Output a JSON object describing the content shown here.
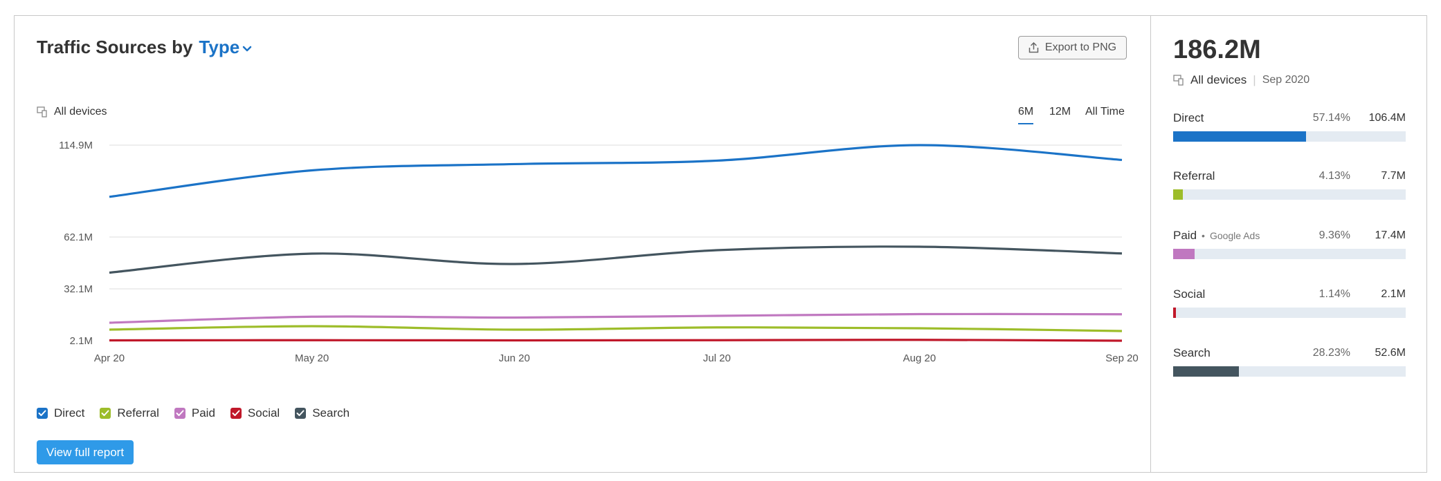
{
  "header": {
    "title": "Traffic Sources by",
    "type_label": "Type",
    "export_label": "Export to PNG",
    "devices_label": "All devices"
  },
  "periods": [
    {
      "label": "6M",
      "active": true
    },
    {
      "label": "12M",
      "active": false
    },
    {
      "label": "All Time",
      "active": false
    }
  ],
  "chart_data": {
    "type": "line",
    "x": [
      "Apr 20",
      "May 20",
      "Jun 20",
      "Jul 20",
      "Aug 20",
      "Sep 20"
    ],
    "y_ticks": [
      "114.9M",
      "62.1M",
      "32.1M",
      "2.1M"
    ],
    "y_tick_values": [
      114.9,
      62.1,
      32.1,
      2.1
    ],
    "ylim": [
      2.1,
      114.9
    ],
    "grid": true,
    "series": [
      {
        "name": "Direct",
        "color": "#1b73c7",
        "values": [
          85.2,
          100.4,
          104.0,
          106.0,
          114.9,
          106.4
        ]
      },
      {
        "name": "Search",
        "color": "#44555f",
        "values": [
          41.5,
          52.5,
          46.5,
          54.5,
          56.5,
          52.6
        ]
      },
      {
        "name": "Paid",
        "color": "#c078c0",
        "values": [
          12.5,
          16.0,
          15.5,
          16.5,
          17.5,
          17.4
        ]
      },
      {
        "name": "Referral",
        "color": "#9dbd2a",
        "values": [
          8.5,
          10.5,
          8.5,
          9.8,
          9.3,
          7.7
        ]
      },
      {
        "name": "Social",
        "color": "#c0182a",
        "values": [
          2.3,
          2.4,
          2.3,
          2.4,
          2.6,
          2.1
        ]
      }
    ]
  },
  "legend": [
    {
      "name": "Direct",
      "color": "#1b73c7"
    },
    {
      "name": "Referral",
      "color": "#9dbd2a"
    },
    {
      "name": "Paid",
      "color": "#c078c0"
    },
    {
      "name": "Social",
      "color": "#c0182a"
    },
    {
      "name": "Search",
      "color": "#44555f"
    }
  ],
  "actions": {
    "view_report_label": "View full report"
  },
  "summary": {
    "total": "186.2M",
    "devices_label": "All devices",
    "date": "Sep 2020",
    "sources": [
      {
        "name": "Direct",
        "sub": "",
        "pct": "57.14%",
        "value": "106.4M",
        "share": 0.5714,
        "color": "#1b73c7"
      },
      {
        "name": "Referral",
        "sub": "",
        "pct": "4.13%",
        "value": "7.7M",
        "share": 0.0413,
        "color": "#9dbd2a"
      },
      {
        "name": "Paid",
        "sub": "Google Ads",
        "pct": "9.36%",
        "value": "17.4M",
        "share": 0.0936,
        "color": "#c078c0"
      },
      {
        "name": "Social",
        "sub": "",
        "pct": "1.14%",
        "value": "2.1M",
        "share": 0.0114,
        "color": "#c0182a"
      },
      {
        "name": "Search",
        "sub": "",
        "pct": "28.23%",
        "value": "52.6M",
        "share": 0.2823,
        "color": "#44555f"
      }
    ]
  }
}
